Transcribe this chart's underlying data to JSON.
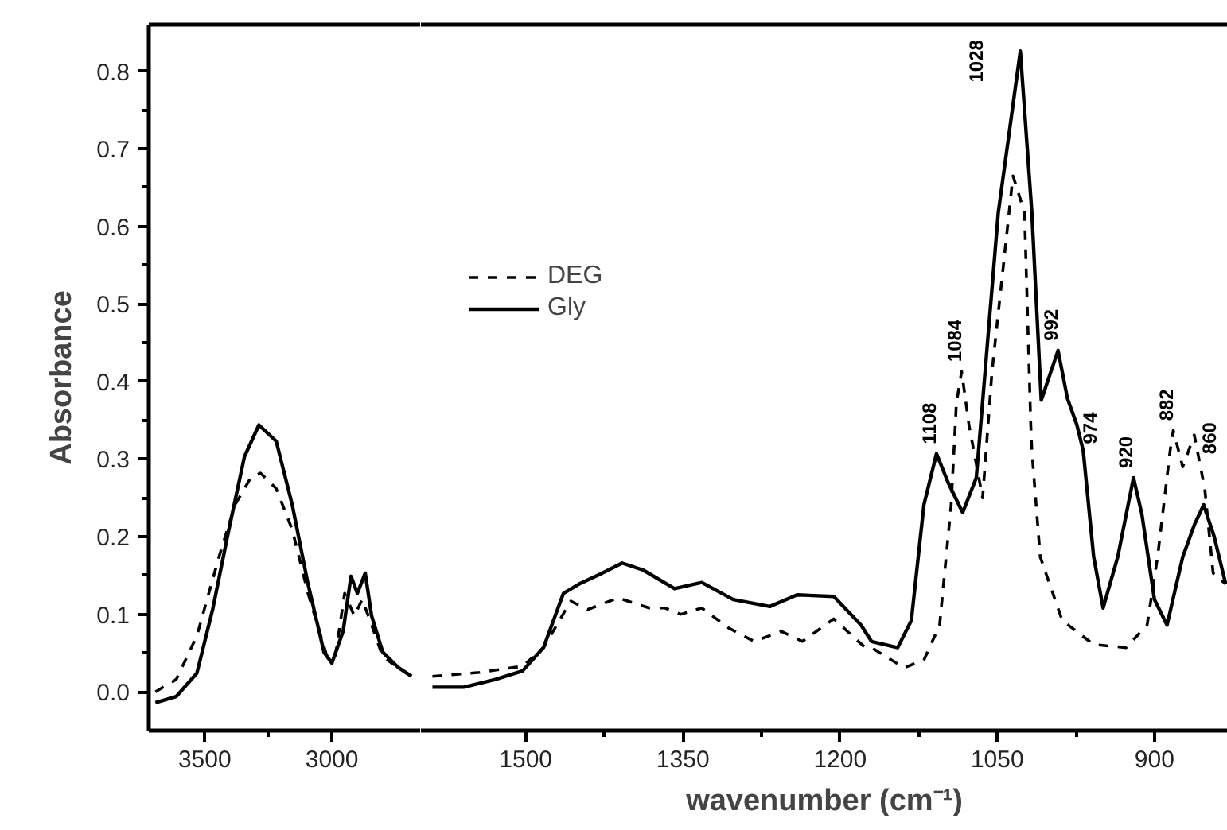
{
  "chart_data": [
    {
      "type": "line",
      "ylabel": "Absorbance",
      "xlim": [
        3720,
        2650
      ],
      "xticks": [
        3500,
        {
          "value": 3250,
          "label": null
        },
        3000
      ],
      "ylim": [
        -0.05,
        0.86
      ],
      "yticks": [
        {
          "value": 0,
          "label": "0.0"
        },
        {
          "value": 0.05,
          "label": null
        },
        {
          "value": 0.1,
          "label": "0.1"
        },
        {
          "value": 0.15,
          "label": null
        },
        {
          "value": 0.2,
          "label": "0.2"
        },
        {
          "value": 0.25,
          "label": null
        },
        {
          "value": 0.3,
          "label": "0.3"
        },
        {
          "value": 0.35,
          "label": null
        },
        {
          "value": 0.4,
          "label": "0.4"
        },
        {
          "value": 0.45,
          "label": null
        },
        {
          "value": 0.5,
          "label": "0.5"
        },
        {
          "value": 0.55,
          "label": null
        },
        {
          "value": 0.6,
          "label": "0.6"
        },
        {
          "value": 0.65,
          "label": null
        },
        {
          "value": 0.7,
          "label": "0.7"
        },
        {
          "value": 0.75,
          "label": null
        },
        {
          "value": 0.8,
          "label": "0.8"
        }
      ],
      "series": [
        {
          "color": "#000000",
          "line_style": "dashed",
          "x": [
            3694,
            3612,
            3531,
            3444,
            3381,
            3319,
            3281,
            3219,
            3156,
            3094,
            3019,
            2987,
            2950,
            2912,
            2881,
            2850,
            2800,
            2687
          ],
          "values": [
            0.0,
            0.016,
            0.072,
            0.174,
            0.241,
            0.276,
            0.282,
            0.262,
            0.209,
            0.127,
            0.045,
            0.045,
            0.127,
            0.098,
            0.119,
            0.092,
            0.045,
            0.02
          ]
        },
        {
          "color": "#000000",
          "line_style": "solid",
          "x": [
            3694,
            3612,
            3531,
            3469,
            3406,
            3344,
            3287,
            3219,
            3156,
            3094,
            3031,
            3000,
            2956,
            2925,
            2900,
            2869,
            2844,
            2800,
            2738,
            2687
          ],
          "values": [
            -0.014,
            -0.006,
            0.024,
            0.106,
            0.208,
            0.303,
            0.344,
            0.323,
            0.241,
            0.139,
            0.051,
            0.037,
            0.078,
            0.149,
            0.127,
            0.153,
            0.098,
            0.051,
            0.031,
            0.02
          ]
        }
      ]
    },
    {
      "type": "line",
      "xlabel": "wavenumber (cm⁻¹)",
      "xlim": [
        1600,
        830
      ],
      "xticks": [
        1500,
        {
          "value": 1425,
          "label": null
        },
        1350,
        {
          "value": 1275,
          "label": null
        },
        1200,
        {
          "value": 1125,
          "label": null
        },
        1050,
        {
          "value": 975,
          "label": null
        },
        900
      ],
      "ylim": [
        -0.05,
        0.86
      ],
      "tick_labels": "x",
      "legend": "top left",
      "series": [
        {
          "name": "DEG",
          "color": "#000000",
          "line_style": "dashed",
          "x": [
            1589,
            1544,
            1503,
            1483,
            1457,
            1441,
            1412,
            1382,
            1367,
            1352,
            1332,
            1306,
            1282,
            1256,
            1236,
            1206,
            1176,
            1170,
            1139,
            1120,
            1105,
            1094,
            1089,
            1084,
            1077,
            1064,
            1055,
            1035,
            1024,
            1018,
            1017,
            1009,
            988,
            958,
            927,
            907,
            897,
            885,
            882,
            873,
            862,
            852,
            844,
            832
          ],
          "values": [
            0.02,
            0.025,
            0.033,
            0.057,
            0.117,
            0.106,
            0.121,
            0.108,
            0.108,
            0.1,
            0.108,
            0.082,
            0.065,
            0.078,
            0.065,
            0.094,
            0.057,
            0.057,
            0.031,
            0.041,
            0.086,
            0.241,
            0.372,
            0.413,
            0.344,
            0.25,
            0.413,
            0.665,
            0.618,
            0.344,
            0.311,
            0.174,
            0.092,
            0.061,
            0.057,
            0.086,
            0.174,
            0.311,
            0.337,
            0.29,
            0.331,
            0.262,
            0.153,
            0.139
          ]
        },
        {
          "name": "Gly",
          "color": "#000000",
          "line_style": "solid",
          "x": [
            1589,
            1559,
            1529,
            1503,
            1483,
            1464,
            1449,
            1427,
            1408,
            1388,
            1358,
            1332,
            1302,
            1267,
            1241,
            1206,
            1180,
            1170,
            1145,
            1132,
            1120,
            1108,
            1097,
            1083,
            1070,
            1049,
            1028,
            1017,
            1008,
            992,
            983,
            974,
            968,
            958,
            949,
            935,
            920,
            912,
            900,
            888,
            873,
            862,
            853,
            843,
            832
          ],
          "values": [
            0.006,
            0.006,
            0.016,
            0.027,
            0.057,
            0.127,
            0.139,
            0.153,
            0.166,
            0.157,
            0.133,
            0.141,
            0.119,
            0.11,
            0.125,
            0.123,
            0.086,
            0.065,
            0.057,
            0.092,
            0.241,
            0.307,
            0.27,
            0.231,
            0.276,
            0.618,
            0.826,
            0.618,
            0.376,
            0.44,
            0.378,
            0.344,
            0.311,
            0.174,
            0.108,
            0.174,
            0.276,
            0.229,
            0.119,
            0.086,
            0.174,
            0.215,
            0.241,
            0.2,
            0.139
          ]
        }
      ],
      "annotations": [
        {
          "text": "1108",
          "x": 1108,
          "y": 0.307
        },
        {
          "text": "1084",
          "x": 1084,
          "y": 0.413
        },
        {
          "text": "1028",
          "x": 1028,
          "y": 0.826
        },
        {
          "text": "992",
          "x": 992,
          "y": 0.44
        },
        {
          "text": "974",
          "x": 974,
          "y": 0.344
        },
        {
          "text": "920",
          "x": 920,
          "y": 0.276
        },
        {
          "text": "882",
          "x": 882,
          "y": 0.337
        },
        {
          "text": "860",
          "x": 860,
          "y": 0.331
        }
      ]
    }
  ]
}
